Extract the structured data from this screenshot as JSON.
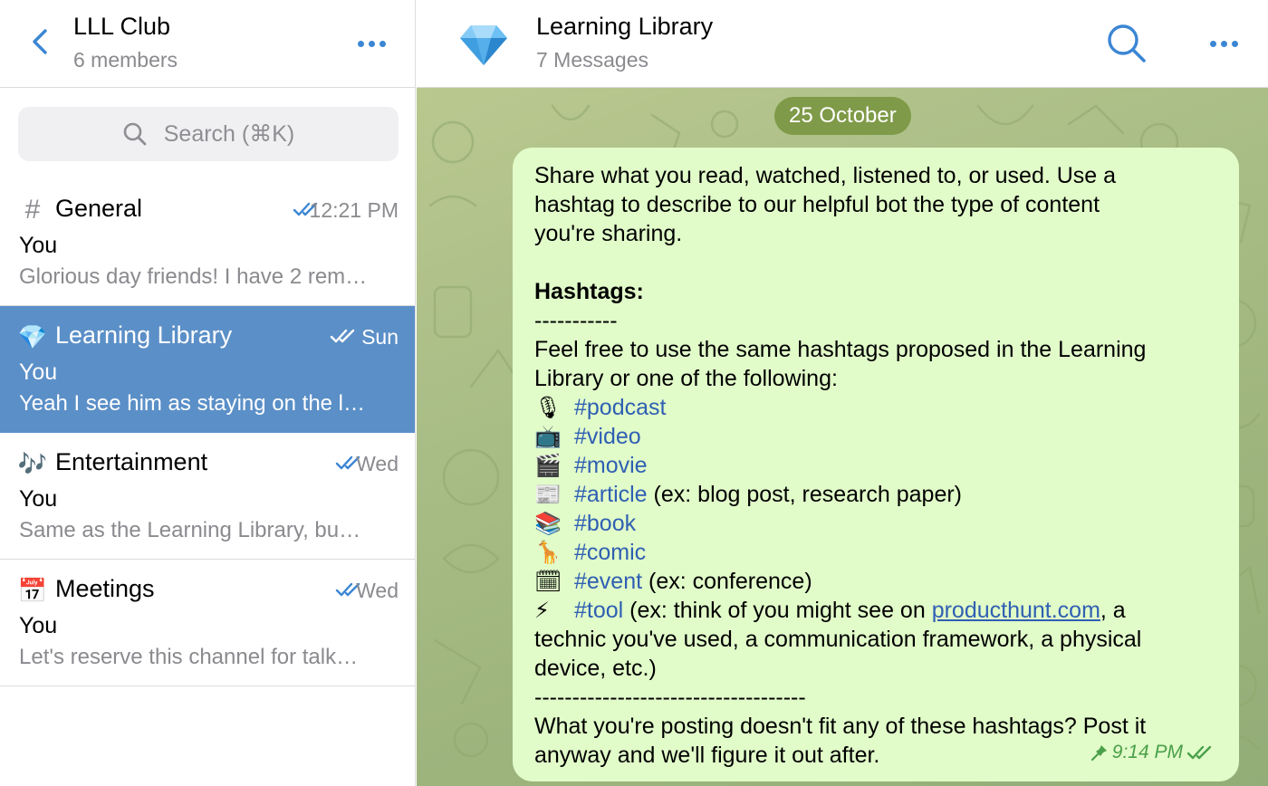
{
  "left_header": {
    "title": "LLL Club",
    "subtitle": "6 members"
  },
  "search": {
    "placeholder": "Search (⌘K)"
  },
  "chats": [
    {
      "icon": "#",
      "name": "General",
      "time": "12:21 PM",
      "sender": "You",
      "preview": "Glorious day friends! I have 2 rem…",
      "active": false
    },
    {
      "icon": "💎",
      "name": "Learning Library",
      "time": "Sun",
      "sender": "You",
      "preview": "Yeah I see him as staying on the l…",
      "active": true
    },
    {
      "icon": "🎶",
      "name": "Entertainment",
      "time": "Wed",
      "sender": "You",
      "preview": "Same as the Learning Library, bu…",
      "active": false
    },
    {
      "icon": "📅",
      "name": "Meetings",
      "time": "Wed",
      "sender": "You",
      "preview": "Let's reserve this channel for talk…",
      "active": false
    }
  ],
  "conversation": {
    "title": "Learning Library",
    "subtitle": "7 Messages",
    "date": "25 October"
  },
  "message": {
    "intro": [
      "Share what you read, watched, listened to, or used. Use a",
      "hashtag to describe to our helpful bot the type of content",
      "you're sharing."
    ],
    "heading": "Hashtags:",
    "rule_short": "-----------",
    "free_use": [
      "Feel free to use the same hashtags proposed in the Learning",
      "Library or one of the following:"
    ],
    "hashtags": [
      {
        "emoji": "🎙",
        "tag": "#podcast",
        "note": ""
      },
      {
        "emoji": "📺",
        "tag": "#video",
        "note": ""
      },
      {
        "emoji": "🎬",
        "tag": "#movie",
        "note": ""
      },
      {
        "emoji": "📰",
        "tag": "#article",
        "note": " (ex: blog post, research paper)"
      },
      {
        "emoji": "📚",
        "tag": "#book",
        "note": ""
      },
      {
        "emoji": "🦒",
        "tag": "#comic",
        "note": ""
      },
      {
        "emoji": "🗓",
        "tag": "#event",
        "note": " (ex: conference)"
      }
    ],
    "tool": {
      "emoji": "⚡",
      "tag": "#tool",
      "before_link": " (ex: think of you might see on ",
      "link": "producthunt.com",
      "after_link": ", a"
    },
    "tool_cont": [
      "technic you've used, a communication framework, a physical",
      "device, etc.)"
    ],
    "rule_long": "------------------------------------",
    "closing": [
      "What you're posting doesn't fit any of these hashtags? Post it",
      "anyway and we'll figure it out after."
    ],
    "time": "9:14 PM"
  },
  "colors": {
    "accent": "#3b86d4",
    "active_row": "#5b8fc7",
    "bubble": "#e1fbc9",
    "date_pill": "#7f9a48",
    "hashtag": "#2f5fb3",
    "read_check": "#4aa04a"
  },
  "icons": {
    "back": "chevron-left-icon",
    "more": "more-dots-icon",
    "search": "search-icon",
    "read": "double-check-icon",
    "pinned": "pin-icon",
    "avatar": "gem-icon"
  }
}
